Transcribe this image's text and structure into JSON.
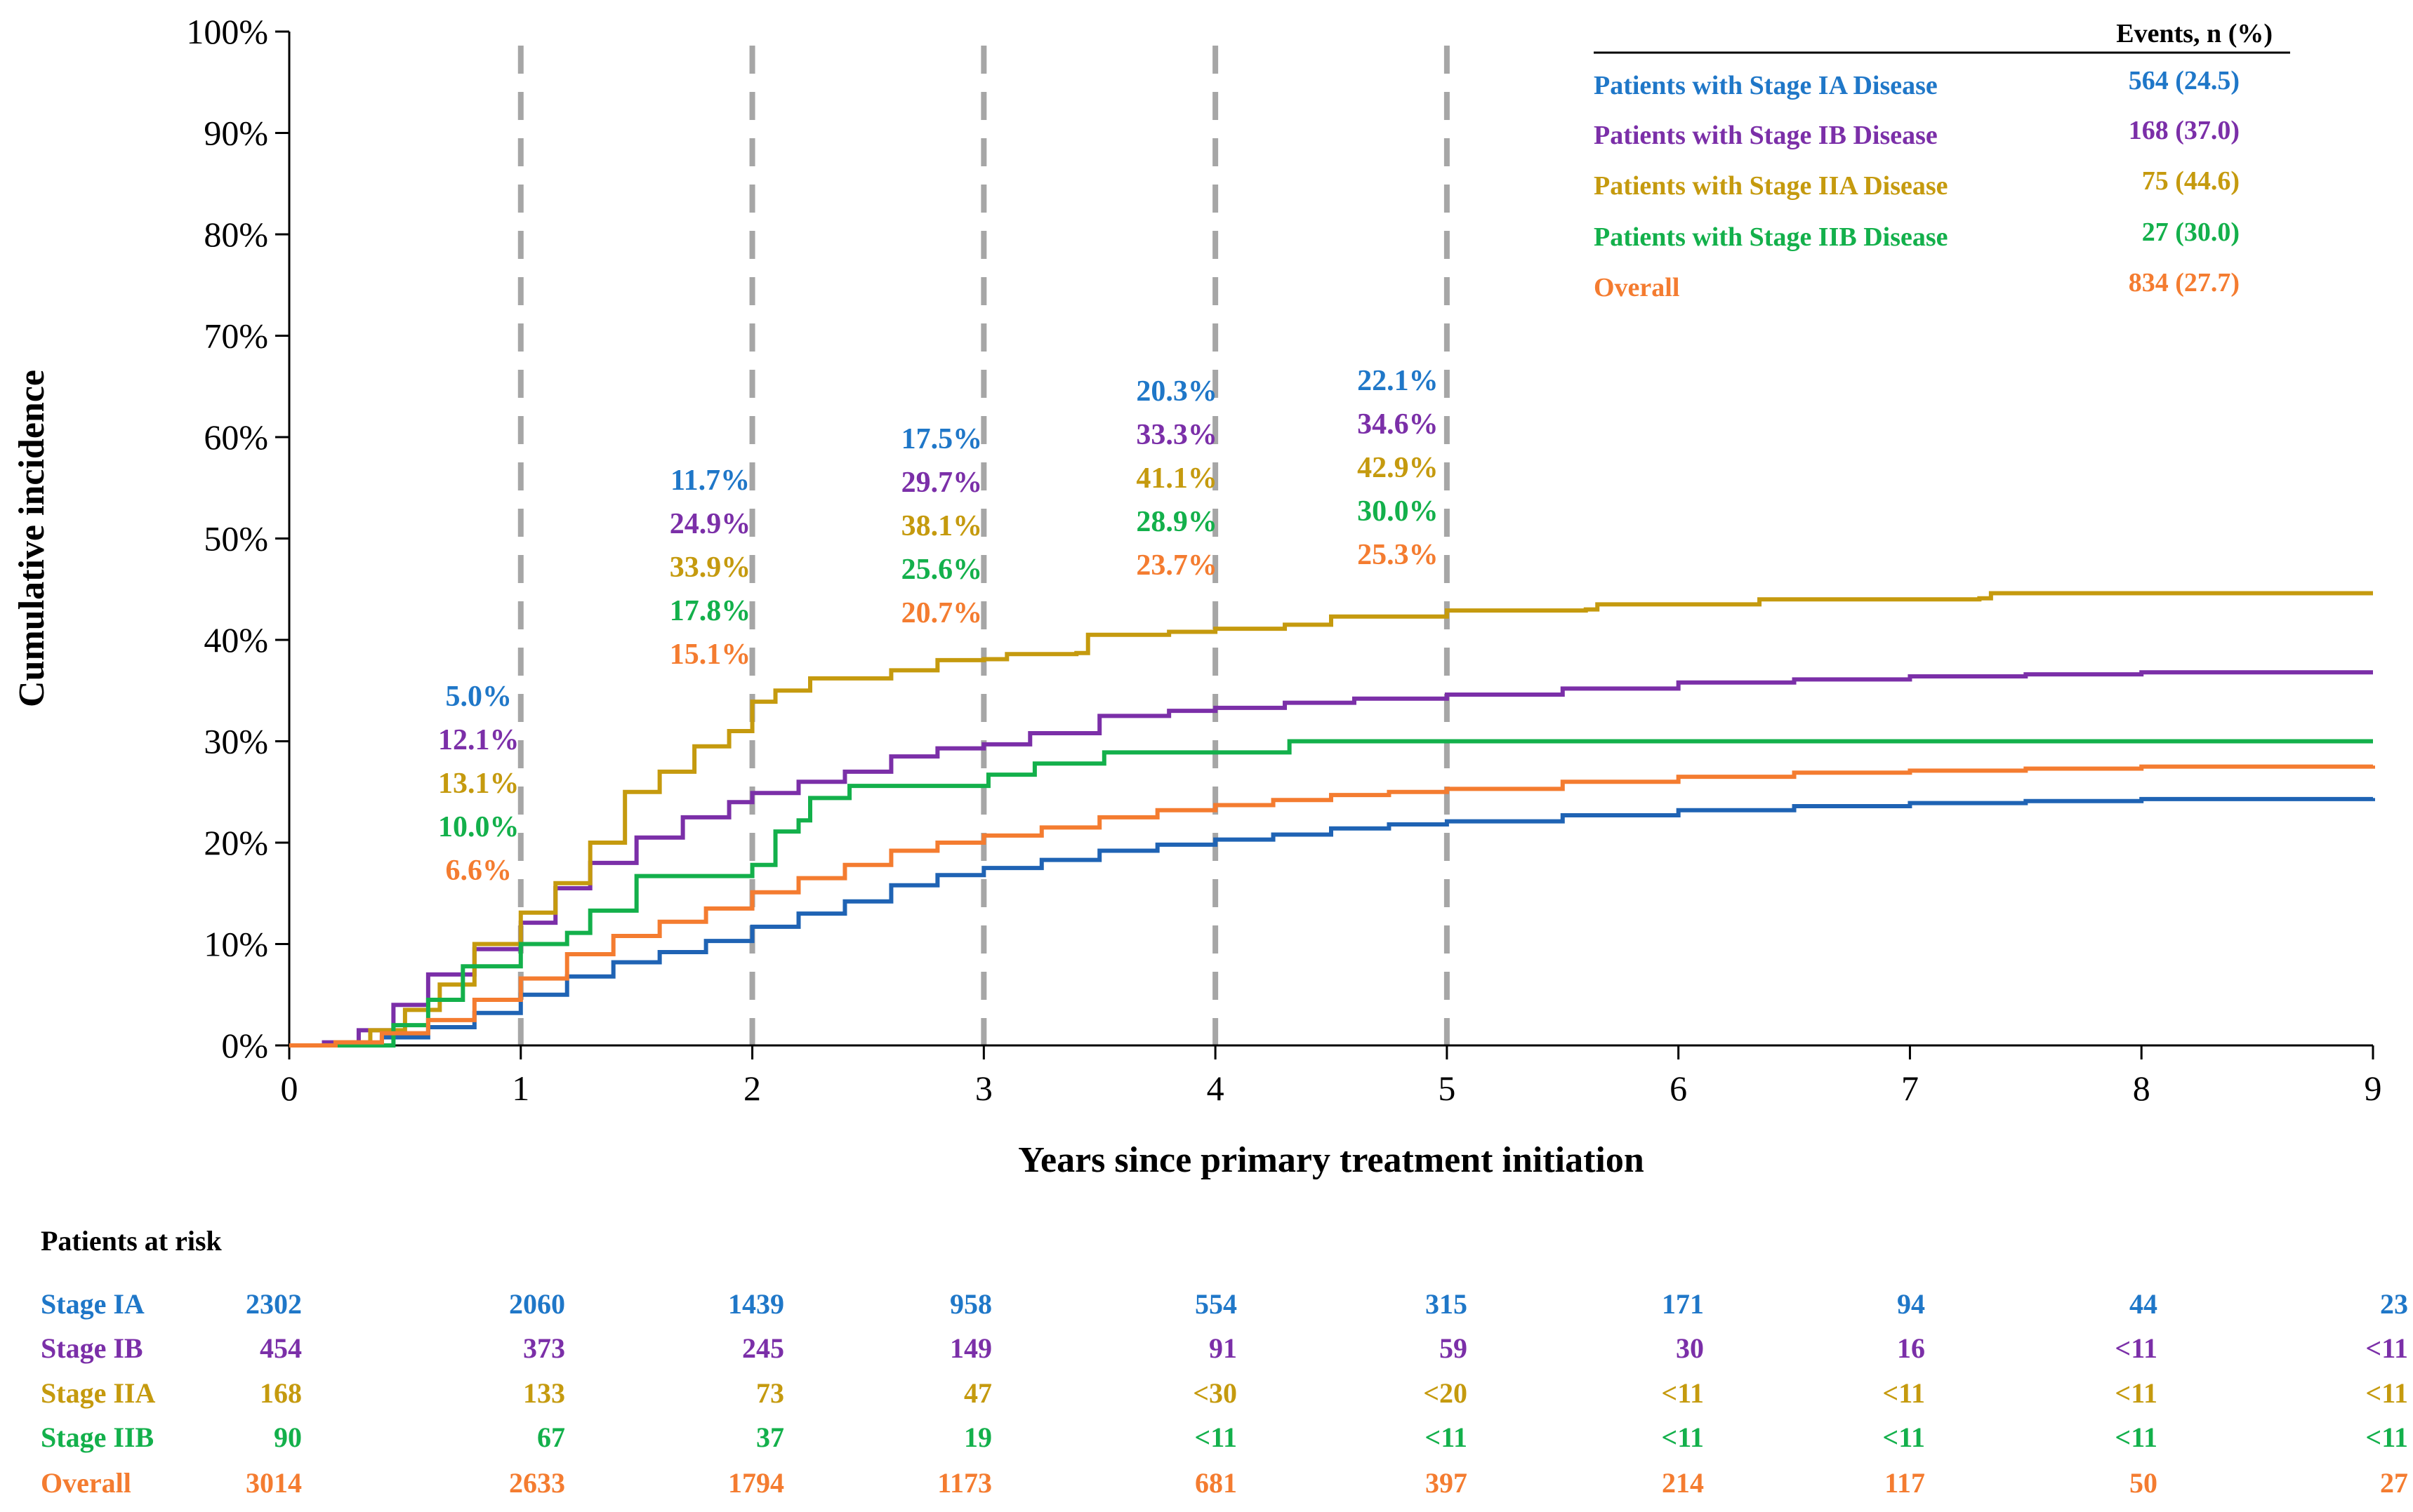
{
  "chart_data": {
    "type": "line",
    "title": "",
    "xlabel": "Years since primary treatment initiation",
    "ylabel": "Cumulative incidence",
    "xlim": [
      0,
      9
    ],
    "ylim": [
      0,
      100
    ],
    "x_ticks": [
      "0",
      "1",
      "2",
      "3",
      "4",
      "5",
      "6",
      "7",
      "8",
      "9"
    ],
    "y_ticks": [
      "0%",
      "10%",
      "20%",
      "30%",
      "40%",
      "50%",
      "60%",
      "70%",
      "80%",
      "90%",
      "100%"
    ],
    "vertical_reference_lines_at_years": [
      1,
      2,
      3,
      4,
      5
    ],
    "legend": {
      "header": "Events, n (%)",
      "placement": "top-right"
    },
    "series": [
      {
        "name": "Patients with Stage IA Disease",
        "short_name": "Stage IA",
        "color": "#1f63b4",
        "label_color": "#1f77c8",
        "events": "564 (24.5)",
        "milestone_labels": [
          "5.0%",
          "11.7%",
          "17.5%",
          "20.3%",
          "22.1%"
        ],
        "points": [
          [
            0,
            0
          ],
          [
            0.2,
            0.2
          ],
          [
            0.4,
            0.8
          ],
          [
            0.6,
            1.8
          ],
          [
            0.8,
            3.2
          ],
          [
            1,
            5.0
          ],
          [
            1.2,
            6.8
          ],
          [
            1.4,
            8.2
          ],
          [
            1.6,
            9.2
          ],
          [
            1.8,
            10.3
          ],
          [
            2,
            11.7
          ],
          [
            2.2,
            13.0
          ],
          [
            2.4,
            14.2
          ],
          [
            2.6,
            15.8
          ],
          [
            2.8,
            16.8
          ],
          [
            3,
            17.5
          ],
          [
            3.25,
            18.3
          ],
          [
            3.5,
            19.2
          ],
          [
            3.75,
            19.8
          ],
          [
            4,
            20.3
          ],
          [
            4.25,
            20.8
          ],
          [
            4.5,
            21.4
          ],
          [
            4.75,
            21.8
          ],
          [
            5,
            22.1
          ],
          [
            5.5,
            22.7
          ],
          [
            6,
            23.2
          ],
          [
            6.5,
            23.6
          ],
          [
            7,
            23.9
          ],
          [
            7.5,
            24.1
          ],
          [
            8,
            24.3
          ],
          [
            9,
            24.4
          ]
        ]
      },
      {
        "name": "Patients with Stage IB Disease",
        "short_name": "Stage IB",
        "color": "#7b2fa8",
        "label_color": "#7b2fa8",
        "events": "168 (37.0)",
        "milestone_labels": [
          "12.1%",
          "24.9%",
          "29.7%",
          "33.3%",
          "34.6%"
        ],
        "points": [
          [
            0,
            0
          ],
          [
            0.15,
            0.3
          ],
          [
            0.3,
            1.5
          ],
          [
            0.45,
            4.0
          ],
          [
            0.6,
            7.0
          ],
          [
            0.8,
            9.5
          ],
          [
            1,
            12.1
          ],
          [
            1.15,
            15.5
          ],
          [
            1.3,
            18.0
          ],
          [
            1.5,
            20.5
          ],
          [
            1.7,
            22.5
          ],
          [
            1.9,
            24.0
          ],
          [
            2,
            24.9
          ],
          [
            2.2,
            26.0
          ],
          [
            2.4,
            27.0
          ],
          [
            2.6,
            28.5
          ],
          [
            2.8,
            29.3
          ],
          [
            3,
            29.7
          ],
          [
            3.2,
            30.8
          ],
          [
            3.5,
            32.5
          ],
          [
            3.8,
            33.0
          ],
          [
            4,
            33.3
          ],
          [
            4.3,
            33.8
          ],
          [
            4.6,
            34.2
          ],
          [
            5,
            34.6
          ],
          [
            5.5,
            35.2
          ],
          [
            6,
            35.8
          ],
          [
            6.5,
            36.1
          ],
          [
            7,
            36.4
          ],
          [
            7.5,
            36.6
          ],
          [
            8,
            36.8
          ],
          [
            9,
            36.8
          ]
        ]
      },
      {
        "name": "Patients with Stage IIA Disease",
        "short_name": "Stage IIA",
        "color": "#c59a0e",
        "label_color": "#c59a0e",
        "events": "75 (44.6)",
        "milestone_labels": [
          "13.1%",
          "33.9%",
          "38.1%",
          "41.1%",
          "42.9%"
        ],
        "points": [
          [
            0,
            0
          ],
          [
            0.2,
            0.3
          ],
          [
            0.35,
            1.5
          ],
          [
            0.5,
            3.5
          ],
          [
            0.65,
            6.0
          ],
          [
            0.8,
            10.0
          ],
          [
            1,
            13.1
          ],
          [
            1.15,
            16.0
          ],
          [
            1.3,
            20.0
          ],
          [
            1.45,
            25.0
          ],
          [
            1.6,
            27.0
          ],
          [
            1.75,
            29.5
          ],
          [
            1.9,
            31.0
          ],
          [
            2,
            33.9
          ],
          [
            2.1,
            35.0
          ],
          [
            2.25,
            36.2
          ],
          [
            2.6,
            37.0
          ],
          [
            2.8,
            38.0
          ],
          [
            3,
            38.1
          ],
          [
            3.1,
            38.6
          ],
          [
            3.4,
            38.7
          ],
          [
            3.45,
            40.5
          ],
          [
            3.8,
            40.8
          ],
          [
            4,
            41.1
          ],
          [
            4.3,
            41.5
          ],
          [
            4.5,
            42.3
          ],
          [
            5,
            42.9
          ],
          [
            5.6,
            43.0
          ],
          [
            5.65,
            43.5
          ],
          [
            6.3,
            43.5
          ],
          [
            6.35,
            44.0
          ],
          [
            7.3,
            44.1
          ],
          [
            7.35,
            44.6
          ],
          [
            9,
            44.6
          ]
        ]
      },
      {
        "name": "Patients with Stage IIB Disease",
        "short_name": "Stage IIB",
        "color": "#13b04b",
        "label_color": "#13b04b",
        "events": "27 (30.0)",
        "milestone_labels": [
          "10.0%",
          "17.8%",
          "25.6%",
          "28.9%",
          "30.0%"
        ],
        "points": [
          [
            0,
            0
          ],
          [
            0.3,
            0
          ],
          [
            0.45,
            2.0
          ],
          [
            0.6,
            4.5
          ],
          [
            0.75,
            7.8
          ],
          [
            0.95,
            7.8
          ],
          [
            1,
            10.0
          ],
          [
            1.2,
            11.1
          ],
          [
            1.3,
            13.3
          ],
          [
            1.45,
            13.3
          ],
          [
            1.5,
            16.7
          ],
          [
            1.85,
            16.7
          ],
          [
            2,
            17.8
          ],
          [
            2.1,
            21.1
          ],
          [
            2.2,
            22.2
          ],
          [
            2.25,
            24.4
          ],
          [
            2.4,
            24.4
          ],
          [
            2.42,
            25.6
          ],
          [
            3,
            25.6
          ],
          [
            3.02,
            26.7
          ],
          [
            3.2,
            26.7
          ],
          [
            3.22,
            27.8
          ],
          [
            3.5,
            27.8
          ],
          [
            3.52,
            28.9
          ],
          [
            4.3,
            28.9
          ],
          [
            4.32,
            30.0
          ],
          [
            9,
            30.0
          ]
        ]
      },
      {
        "name": "Overall",
        "short_name": "Overall",
        "color": "#f47c30",
        "label_color": "#f47c30",
        "events": "834 (27.7)",
        "milestone_labels": [
          "6.6%",
          "15.1%",
          "20.7%",
          "23.7%",
          "25.3%"
        ],
        "points": [
          [
            0,
            0
          ],
          [
            0.2,
            0.3
          ],
          [
            0.4,
            1.2
          ],
          [
            0.6,
            2.5
          ],
          [
            0.8,
            4.5
          ],
          [
            1,
            6.6
          ],
          [
            1.2,
            9.0
          ],
          [
            1.4,
            10.8
          ],
          [
            1.6,
            12.2
          ],
          [
            1.8,
            13.5
          ],
          [
            2,
            15.1
          ],
          [
            2.2,
            16.5
          ],
          [
            2.4,
            17.8
          ],
          [
            2.6,
            19.2
          ],
          [
            2.8,
            20.0
          ],
          [
            3,
            20.7
          ],
          [
            3.25,
            21.5
          ],
          [
            3.5,
            22.5
          ],
          [
            3.75,
            23.2
          ],
          [
            4,
            23.7
          ],
          [
            4.25,
            24.2
          ],
          [
            4.5,
            24.7
          ],
          [
            4.75,
            25.0
          ],
          [
            5,
            25.3
          ],
          [
            5.5,
            26.0
          ],
          [
            6,
            26.5
          ],
          [
            6.5,
            26.9
          ],
          [
            7,
            27.1
          ],
          [
            7.5,
            27.3
          ],
          [
            8,
            27.5
          ],
          [
            9,
            27.6
          ]
        ]
      }
    ]
  },
  "risk_table": {
    "title": "Patients at risk",
    "rows": [
      {
        "label": "Stage IA",
        "color": "#1f77c8",
        "values": [
          "2302",
          "2060",
          "1439",
          "958",
          "554",
          "315",
          "171",
          "94",
          "44",
          "23"
        ]
      },
      {
        "label": "Stage IB",
        "color": "#7b2fa8",
        "values": [
          "454",
          "373",
          "245",
          "149",
          "91",
          "59",
          "30",
          "16",
          "<11",
          "<11"
        ]
      },
      {
        "label": "Stage IIA",
        "color": "#c59a0e",
        "values": [
          "168",
          "133",
          "73",
          "47",
          "<30",
          "<20",
          "<11",
          "<11",
          "<11",
          "<11"
        ]
      },
      {
        "label": "Stage IIB",
        "color": "#13b04b",
        "values": [
          "90",
          "67",
          "37",
          "19",
          "<11",
          "<11",
          "<11",
          "<11",
          "<11",
          "<11"
        ]
      },
      {
        "label": "Overall",
        "color": "#f47c30",
        "values": [
          "3014",
          "2633",
          "1794",
          "1173",
          "681",
          "397",
          "214",
          "117",
          "50",
          "27"
        ]
      }
    ]
  }
}
